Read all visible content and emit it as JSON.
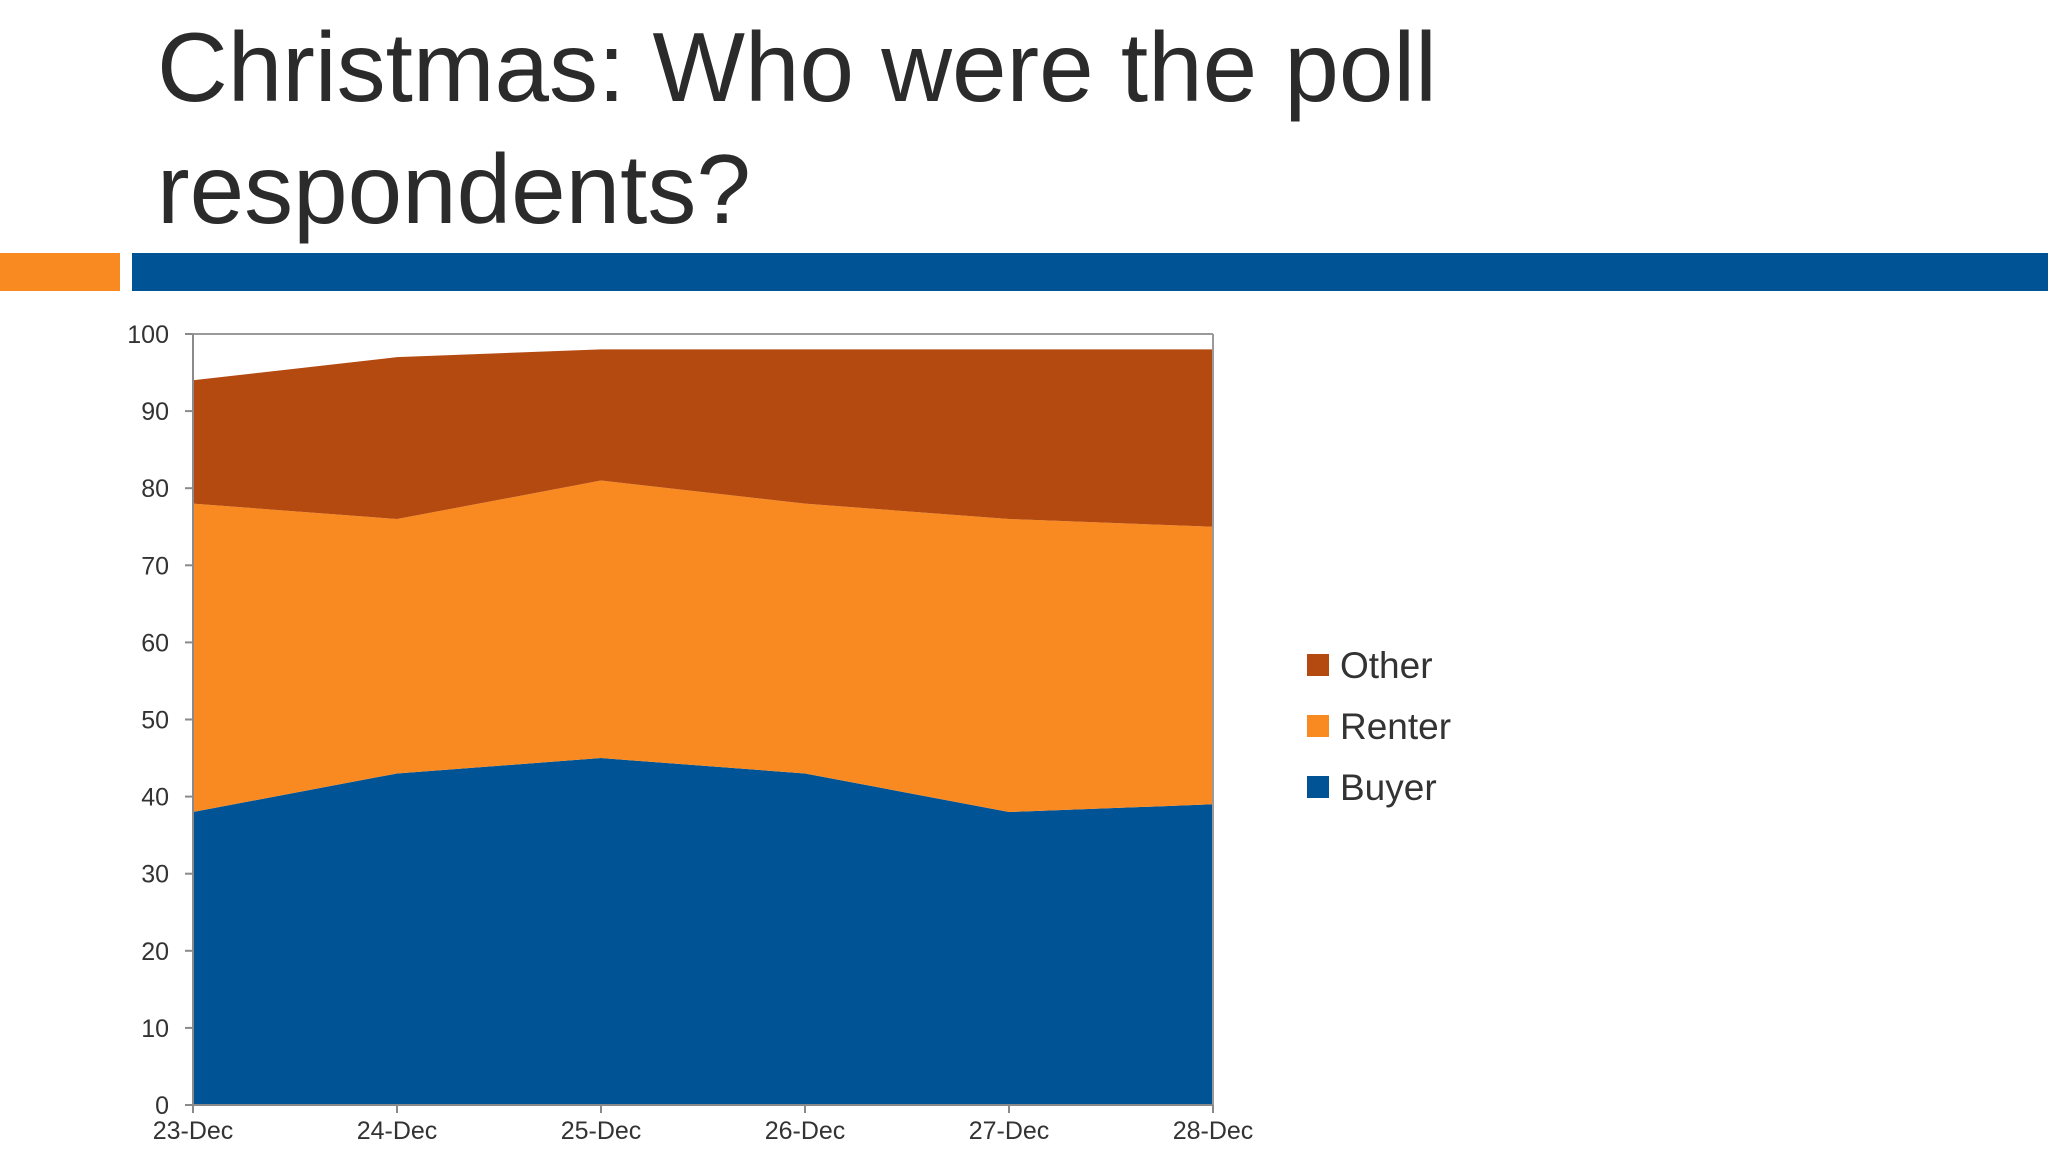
{
  "slide": {
    "title_line1": "Christmas: Who were the poll",
    "title_line2": "respondents?"
  },
  "colors": {
    "accent_orange": "#F98A21",
    "accent_blue": "#005496"
  },
  "chart_data": {
    "type": "area",
    "stacked": true,
    "title": "",
    "xlabel": "",
    "ylabel": "",
    "categories": [
      "23-Dec",
      "24-Dec",
      "25-Dec",
      "26-Dec",
      "27-Dec",
      "28-Dec"
    ],
    "ylim": [
      0,
      100
    ],
    "yticks": [
      0,
      10,
      20,
      30,
      40,
      50,
      60,
      70,
      80,
      90,
      100
    ],
    "grid": false,
    "legend_position": "right",
    "series": [
      {
        "name": "Buyer",
        "color": "#005496",
        "values": [
          38,
          43,
          45,
          43,
          38,
          39
        ]
      },
      {
        "name": "Renter",
        "color": "#F98A21",
        "values": [
          40,
          33,
          36,
          35,
          38,
          36
        ]
      },
      {
        "name": "Other",
        "color": "#B44A10",
        "values": [
          16,
          21,
          17,
          20,
          22,
          23
        ]
      }
    ],
    "legend_order": [
      "Other",
      "Renter",
      "Buyer"
    ]
  }
}
